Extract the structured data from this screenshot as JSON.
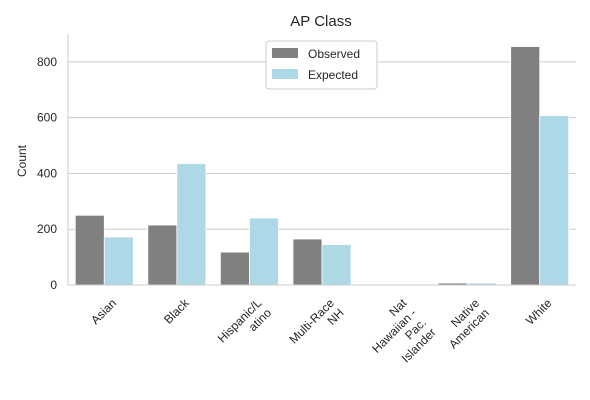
{
  "chart_data": {
    "type": "bar",
    "title": "AP Class",
    "xlabel": "",
    "ylabel": "Count",
    "ylim": [
      0,
      900
    ],
    "yticks": [
      0,
      200,
      400,
      600,
      800
    ],
    "grid": true,
    "legend_position": "top-center",
    "categories": [
      [
        "Asian"
      ],
      [
        "Black"
      ],
      [
        "Hispanic/L",
        "atino"
      ],
      [
        "Multi-Race",
        "NH"
      ],
      [
        "Nat",
        "Hawaiian -",
        "Pac.",
        "Islander"
      ],
      [
        "Native",
        "American"
      ],
      [
        "White"
      ]
    ],
    "series": [
      {
        "name": "Observed",
        "color": "#808080",
        "values": [
          250,
          215,
          118,
          165,
          0,
          7,
          855
        ]
      },
      {
        "name": "Expected",
        "color": "#add8e6",
        "values": [
          172,
          435,
          240,
          145,
          2,
          7,
          607
        ]
      }
    ]
  }
}
